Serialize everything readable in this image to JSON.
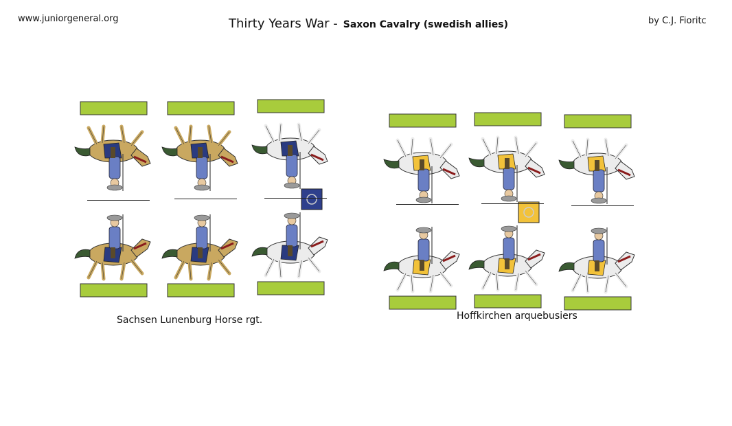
{
  "header": {
    "site": "www.juniorgeneral.org",
    "title_main": "Thirty Years War -",
    "title_sub": "Saxon Cavalry (swedish allies)",
    "author": "by C.J. Fioritc"
  },
  "groups": [
    {
      "caption": "Sachsen Lunenburg Horse rgt.",
      "figures": [
        {
          "horse_color": "#c9a860",
          "coat_color": "#2a3b80",
          "role": "trooper",
          "flag": false
        },
        {
          "horse_color": "#c9a860",
          "coat_color": "#2a3b80",
          "role": "trooper",
          "flag": false
        },
        {
          "horse_color": "#ececec",
          "coat_color": "#2a3b80",
          "role": "cornet",
          "flag": true,
          "flag_color": "#2e3f8c"
        }
      ]
    },
    {
      "caption": "Hoffkirchen arquebusiers",
      "figures": [
        {
          "horse_color": "#ececec",
          "coat_color": "#f2c23a",
          "role": "trooper",
          "flag": false
        },
        {
          "horse_color": "#ececec",
          "coat_color": "#f2c23a",
          "role": "cornet",
          "flag": true,
          "flag_color": "#f2c23a"
        },
        {
          "horse_color": "#ececec",
          "coat_color": "#f2c23a",
          "role": "trooper",
          "flag": false
        }
      ]
    }
  ],
  "colors": {
    "base": "#a8cc3c",
    "tack": "#8a1c1c",
    "rider": "#6a7fc4",
    "tail": "#3a5a32"
  }
}
